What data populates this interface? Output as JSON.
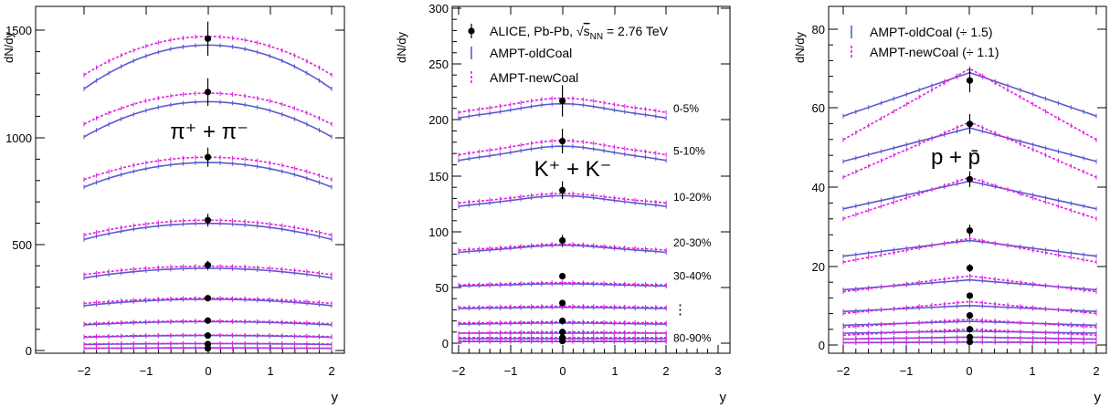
{
  "colors": {
    "alice": "#000000",
    "oldCoal": "#5a5ad0",
    "newCoal": "#e020e0"
  },
  "chart_data": [
    {
      "type": "line",
      "particle_label": "π⁺ + π⁻",
      "ylabel": "dN/dy",
      "xlabel": "y",
      "xlim": [
        -2,
        2
      ],
      "ylim": [
        0,
        1620
      ],
      "x_ticks": [
        "−2",
        "−1",
        "0",
        "1",
        "2"
      ],
      "y_ticks": [
        "0",
        "500",
        "1000",
        "1500"
      ],
      "centralities": [
        {
          "alice": 1460,
          "alice_err": 80,
          "old_center": 1430,
          "old_edge": 1225,
          "new_center": 1470,
          "new_edge": 1290
        },
        {
          "alice": 1210,
          "alice_err": 65,
          "old_center": 1165,
          "old_edge": 1000,
          "new_center": 1205,
          "new_edge": 1060
        },
        {
          "alice": 905,
          "alice_err": 45,
          "old_center": 880,
          "old_edge": 765,
          "new_center": 905,
          "new_edge": 800
        },
        {
          "alice": 610,
          "alice_err": 30,
          "old_center": 595,
          "old_edge": 520,
          "new_center": 610,
          "new_edge": 540
        },
        {
          "alice": 400,
          "alice_err": 20,
          "old_center": 385,
          "old_edge": 340,
          "new_center": 395,
          "new_edge": 355
        },
        {
          "alice": 245,
          "alice_err": 12,
          "old_center": 240,
          "old_edge": 210,
          "new_center": 245,
          "new_edge": 220
        },
        {
          "alice": 140,
          "alice_err": 8,
          "old_center": 135,
          "old_edge": 120,
          "new_center": 138,
          "new_edge": 125
        },
        {
          "alice": 70,
          "alice_err": 4,
          "old_center": 70,
          "old_edge": 62,
          "new_center": 72,
          "new_edge": 65
        },
        {
          "alice": 30,
          "alice_err": 2,
          "old_center": 32,
          "old_edge": 28,
          "new_center": 33,
          "new_edge": 30
        },
        {
          "alice": 10,
          "alice_err": 1,
          "old_center": 12,
          "old_edge": 10,
          "new_center": 12,
          "new_edge": 11
        }
      ]
    },
    {
      "type": "line",
      "particle_label": "K⁺ + K⁻",
      "ylabel": "dN/dy",
      "xlabel": "y",
      "xlim": [
        -2,
        3
      ],
      "ylim": [
        -8,
        300
      ],
      "x_ticks": [
        "−2",
        "−1",
        "0",
        "1",
        "2",
        "3"
      ],
      "y_ticks": [
        "0",
        "50",
        "100",
        "150",
        "200",
        "250",
        "300"
      ],
      "legend": [
        {
          "label_prefix": "ALICE, Pb-Pb, ",
          "label_sqrt": "s",
          "label_sub": "NN",
          "label_suffix": " = 2.76 TeV"
        },
        {
          "label": "AMPT-oldCoal"
        },
        {
          "label": "AMPT-newCoal"
        }
      ],
      "centrality_labels": [
        "0-5%",
        "5-10%",
        "10-20%",
        "20-30%",
        "30-40%",
        "⋮",
        "80-90%"
      ],
      "centralities": [
        {
          "alice": 217,
          "alice_err": 14,
          "old_center": 213,
          "old_edge": 201,
          "new_center": 218,
          "new_edge": 206
        },
        {
          "alice": 181,
          "alice_err": 11,
          "old_center": 175,
          "old_edge": 163,
          "new_center": 180,
          "new_edge": 168
        },
        {
          "alice": 137,
          "alice_err": 8,
          "old_center": 131,
          "old_edge": 122,
          "new_center": 133,
          "new_edge": 125
        },
        {
          "alice": 92,
          "alice_err": 5,
          "old_center": 87,
          "old_edge": 81,
          "new_center": 88,
          "new_edge": 83
        },
        {
          "alice": 60,
          "alice_err": 3,
          "old_center": 53,
          "old_edge": 51,
          "new_center": 54,
          "new_edge": 52
        },
        {
          "alice": 36,
          "alice_err": 2,
          "old_center": 32,
          "old_edge": 31,
          "new_center": 33,
          "new_edge": 32
        },
        {
          "alice": 20,
          "alice_err": 1,
          "old_center": 18,
          "old_edge": 17,
          "new_center": 19,
          "new_edge": 18
        },
        {
          "alice": 10,
          "alice_err": 1,
          "old_center": 9,
          "old_edge": 9,
          "new_center": 10,
          "new_edge": 9
        },
        {
          "alice": 5,
          "alice_err": 0.5,
          "old_center": 4,
          "old_edge": 4,
          "new_center": 5,
          "new_edge": 5
        },
        {
          "alice": 2,
          "alice_err": 0.3,
          "old_center": 1.5,
          "old_edge": 1.5,
          "new_center": 2,
          "new_edge": 2
        }
      ]
    },
    {
      "type": "line",
      "particle_label": "p + p̄",
      "ylabel": "dN/dy",
      "xlabel": "y",
      "xlim": [
        -2,
        2
      ],
      "ylim": [
        -1,
        86
      ],
      "x_ticks": [
        "−2",
        "−1",
        "0",
        "1",
        "2"
      ],
      "y_ticks": [
        "0",
        "20",
        "40",
        "60",
        "80"
      ],
      "legend": [
        {
          "label": "AMPT-oldCoal (÷ 1.5)"
        },
        {
          "label": "AMPT-newCoal (÷ 1.1)"
        }
      ],
      "centralities": [
        {
          "alice": 67,
          "alice_err": 3,
          "old_center": 69,
          "old_edge": 58,
          "new_center": 70,
          "new_edge": 52
        },
        {
          "alice": 56,
          "alice_err": 2.5,
          "old_center": 55,
          "old_edge": 46.5,
          "new_center": 56.5,
          "new_edge": 42.5
        },
        {
          "alice": 42,
          "alice_err": 2,
          "old_center": 41.5,
          "old_edge": 34.5,
          "new_center": 42.5,
          "new_edge": 32
        },
        {
          "alice": 29,
          "alice_err": 1.5,
          "old_center": 26.5,
          "old_edge": 22.5,
          "new_center": 27,
          "new_edge": 21
        },
        {
          "alice": 19.5,
          "alice_err": 1,
          "old_center": 16.5,
          "old_edge": 14,
          "new_center": 17.5,
          "new_edge": 13.5
        },
        {
          "alice": 12.5,
          "alice_err": 0.7,
          "old_center": 10,
          "old_edge": 8.5,
          "new_center": 11,
          "new_edge": 8
        },
        {
          "alice": 7.5,
          "alice_err": 0.5,
          "old_center": 6,
          "old_edge": 5,
          "new_center": 6.5,
          "new_edge": 4.5
        },
        {
          "alice": 4,
          "alice_err": 0.3,
          "old_center": 3.5,
          "old_edge": 3,
          "new_center": 4,
          "new_edge": 2.5
        },
        {
          "alice": 2,
          "alice_err": 0.2,
          "old_center": 2,
          "old_edge": 1.5,
          "new_center": 2,
          "new_edge": 1.5
        },
        {
          "alice": 0.8,
          "alice_err": 0.1,
          "old_center": 0.7,
          "old_edge": 0.6,
          "new_center": 0.8,
          "new_edge": 0.6
        }
      ]
    }
  ]
}
